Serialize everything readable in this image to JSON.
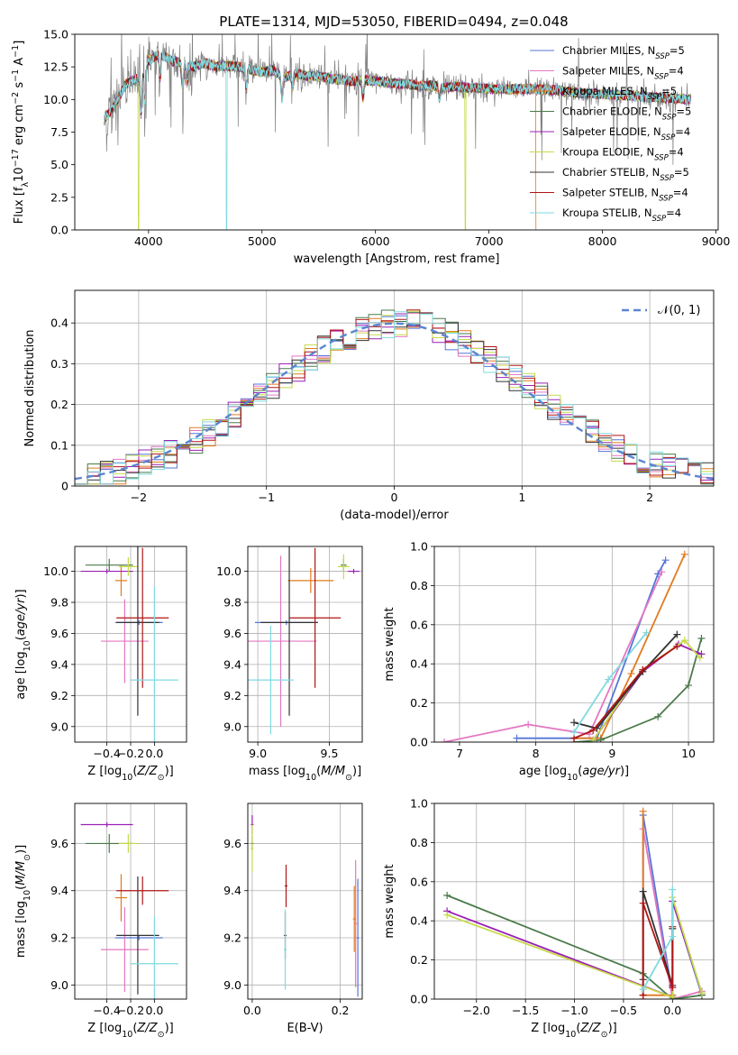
{
  "figure": {
    "title": "PLATE=1314, MJD=53050, FIBERID=0494, z=0.048"
  },
  "models": [
    {
      "name": "Chabrier MILES, N$_{SSP}$=5",
      "label_main": "Chabrier MILES, N",
      "label_sub": "SSP",
      "label_tail": "=5",
      "color": "#5577d6"
    },
    {
      "name": "Salpeter MILES, N$_{SSP}$=4",
      "label_main": "Salpeter MILES, N",
      "label_sub": "SSP",
      "label_tail": "=4",
      "color": "#e377c2"
    },
    {
      "name": "Kroupa MILES, N$_{SSP}$=5",
      "label_main": "Kroupa MILES, N",
      "label_sub": "SSP",
      "label_tail": "=5",
      "color": "#e07b1f"
    },
    {
      "name": "Chabrier ELODIE, N$_{SSP}$=5",
      "label_main": "Chabrier ELODIE, N",
      "label_sub": "SSP",
      "label_tail": "=5",
      "color": "#4a7a4a"
    },
    {
      "name": "Salpeter ELODIE, N$_{SSP}$=4",
      "label_main": "Salpeter ELODIE, N",
      "label_sub": "SSP",
      "label_tail": "=4",
      "color": "#9b20b5"
    },
    {
      "name": "Kroupa ELODIE, N$_{SSP}$=4",
      "label_main": "Kroupa ELODIE, N",
      "label_sub": "SSP",
      "label_tail": "=4",
      "color": "#c7d94a"
    },
    {
      "name": "Chabrier STELIB, N$_{SSP}$=5",
      "label_main": "Chabrier STELIB, N",
      "label_sub": "SSP",
      "label_tail": "=5",
      "color": "#333333"
    },
    {
      "name": "Salpeter STELIB, N$_{SSP}$=4",
      "label_main": "Salpeter STELIB, N",
      "label_sub": "SSP",
      "label_tail": "=4",
      "color": "#b01515"
    },
    {
      "name": "Kroupa STELIB, N$_{SSP}$=4",
      "label_main": "Kroupa STELIB, N",
      "label_sub": "SSP",
      "label_tail": "=4",
      "color": "#7fdadf"
    }
  ],
  "chart_data": [
    {
      "id": "spectrum",
      "type": "line",
      "title": "PLATE=1314, MJD=53050, FIBERID=0494, z=0.048",
      "xlabel": "wavelength [Angstrom, rest frame]",
      "ylabel": "Flux [f$_\\lambda$10$^{-17}$ erg cm$^{-2}$ s$^{-1}$ A$^{-1}$]",
      "xlim": [
        3350,
        9020
      ],
      "ylim": [
        0,
        15
      ],
      "xticks": [
        4000,
        5000,
        6000,
        7000,
        8000,
        9000
      ],
      "yticks": [
        0.0,
        2.5,
        5.0,
        7.5,
        10.0,
        12.5,
        15.0
      ],
      "grid": false,
      "legend_position": "top-right",
      "data_range": [
        3610,
        8780
      ],
      "continuum": {
        "x": [
          3610,
          3700,
          3800,
          3900,
          4000,
          4100,
          4200,
          4300,
          4400,
          4500,
          4600,
          4700,
          4800,
          4900,
          5000,
          5100,
          5200,
          5300,
          5400,
          5500,
          5600,
          5700,
          5800,
          5900,
          6000,
          6100,
          6200,
          6300,
          6400,
          6500,
          6600,
          6700,
          6800,
          6900,
          7000,
          7200,
          7400,
          7600,
          7800,
          8000,
          8200,
          8400,
          8600,
          8780
        ],
        "y": [
          8.5,
          9.5,
          11.2,
          11.6,
          13.0,
          13.5,
          13.0,
          12.8,
          12.5,
          12.8,
          12.5,
          12.6,
          12.5,
          12.3,
          12.1,
          12.2,
          11.7,
          12.0,
          11.8,
          11.8,
          11.6,
          11.5,
          11.4,
          11.5,
          11.4,
          11.3,
          11.2,
          11.2,
          11.0,
          11.1,
          10.9,
          11.0,
          10.9,
          10.9,
          10.8,
          10.8,
          10.8,
          10.7,
          10.5,
          10.4,
          10.3,
          10.2,
          10.1,
          10.0
        ]
      },
      "absorption_lines": [
        {
          "x": 3934,
          "depth": 3.5
        },
        {
          "x": 3968,
          "depth": 3.0
        },
        {
          "x": 4102,
          "depth": 2.0
        },
        {
          "x": 4300,
          "depth": 2.0
        },
        {
          "x": 4340,
          "depth": 1.5
        },
        {
          "x": 4861,
          "depth": 1.5
        },
        {
          "x": 5175,
          "depth": 2.0
        },
        {
          "x": 5270,
          "depth": 1.0
        },
        {
          "x": 5890,
          "depth": 1.5
        },
        {
          "x": 6563,
          "depth": 1.0
        }
      ],
      "dropouts": [
        {
          "x": 3911,
          "series": "Kroupa ELODIE, N$_{SSP}$=4"
        },
        {
          "x": 4688,
          "series": "Kroupa STELIB, N$_{SSP}$=4"
        },
        {
          "x": 6792,
          "series": "Kroupa ELODIE, N$_{SSP}$=4"
        },
        {
          "x": 7415,
          "series": "Kroupa MILES, N$_{SSP}$=5"
        }
      ]
    },
    {
      "id": "residuals",
      "type": "histogram",
      "xlabel": "(data-model)/error",
      "ylabel": "Normed distribution",
      "xlim": [
        -2.5,
        2.5
      ],
      "ylim": [
        0,
        0.48
      ],
      "xticks": [
        -2,
        -1,
        0,
        1,
        2
      ],
      "yticks": [
        0.0,
        0.1,
        0.2,
        0.3,
        0.4
      ],
      "grid": true,
      "legend_position": "top-right",
      "bin_width": 0.1,
      "reference_curve": {
        "label": "$\\mathcal{N}(0,1)$",
        "label_main": "𝒩(0, 1)",
        "style": "dashed",
        "color": "#5b85d0"
      }
    },
    {
      "id": "age_vs_Z",
      "type": "errorbar",
      "xlabel": "Z [log$_{10}$(Z/Z$_\\odot$)]",
      "ylabel": "age  [log$_{10}$(age/yr)]",
      "xlim": [
        -0.67,
        0.27
      ],
      "ylim": [
        8.9,
        10.16
      ],
      "xticks": [
        -0.4,
        -0.2,
        0.0
      ],
      "yticks": [
        9.0,
        9.2,
        9.4,
        9.6,
        9.8,
        10.0
      ],
      "grid": true,
      "points": [
        {
          "series": 0,
          "x": -0.13,
          "xerr": 0.2,
          "y": 9.67,
          "yerr": 0.0
        },
        {
          "series": 1,
          "x": -0.25,
          "xerr": 0.2,
          "y": 9.55,
          "yerr": 0.27
        },
        {
          "series": 2,
          "x": -0.28,
          "xerr": 0.05,
          "y": 9.94,
          "yerr": 0.1
        },
        {
          "series": 3,
          "x": -0.38,
          "xerr": 0.2,
          "y": 10.04,
          "yerr": 0.04
        },
        {
          "series": 4,
          "x": -0.4,
          "xerr": 0.22,
          "y": 10.0,
          "yerr": 0.0
        },
        {
          "series": 5,
          "x": -0.22,
          "xerr": 0.08,
          "y": 10.03,
          "yerr": 0.06
        },
        {
          "series": 6,
          "x": -0.14,
          "xerr": 0.18,
          "y": 9.67,
          "yerr": 0.6
        },
        {
          "series": 7,
          "x": -0.1,
          "xerr": 0.22,
          "y": 9.7,
          "yerr": 0.45
        },
        {
          "series": 8,
          "x": 0.0,
          "xerr": 0.2,
          "y": 9.3,
          "yerr": 0.6
        }
      ]
    },
    {
      "id": "age_vs_mass",
      "type": "errorbar",
      "xlabel": "mass [log$_{10}$(M/M$_\\odot$)]",
      "ylabel": "",
      "xlim": [
        8.93,
        9.73
      ],
      "ylim": [
        8.9,
        10.16
      ],
      "xticks": [
        9.0,
        9.5
      ],
      "yticks": [
        9.0,
        9.2,
        9.4,
        9.6,
        9.8,
        10.0
      ],
      "grid": true,
      "points": [
        {
          "series": 0,
          "x": 9.2,
          "xerr": 0.22,
          "y": 9.67,
          "yerr": 0.0
        },
        {
          "series": 1,
          "x": 9.16,
          "xerr": 0.25,
          "y": 9.55,
          "yerr": 0.55
        },
        {
          "series": 2,
          "x": 9.37,
          "xerr": 0.16,
          "y": 9.94,
          "yerr": 0.08
        },
        {
          "series": 3,
          "x": 9.6,
          "xerr": 0.02,
          "y": 10.04,
          "yerr": 0.04
        },
        {
          "series": 4,
          "x": 9.67,
          "xerr": 0.04,
          "y": 10.0,
          "yerr": 0.0
        },
        {
          "series": 5,
          "x": 9.6,
          "xerr": 0.04,
          "y": 10.03,
          "yerr": 0.08
        },
        {
          "series": 6,
          "x": 9.22,
          "xerr": 0.2,
          "y": 9.67,
          "yerr": 0.6
        },
        {
          "series": 7,
          "x": 9.4,
          "xerr": 0.18,
          "y": 9.7,
          "yerr": 0.45
        },
        {
          "series": 8,
          "x": 9.09,
          "xerr": 0.16,
          "y": 9.3,
          "yerr": 0.35
        }
      ]
    },
    {
      "id": "massweight_vs_age",
      "type": "line",
      "xlabel": "age  [log$_{10}$(age/yr)]",
      "ylabel": "mass weight",
      "xlim": [
        6.67,
        10.33
      ],
      "ylim": [
        0,
        1
      ],
      "xticks": [
        7,
        8,
        9,
        10
      ],
      "yticks": [
        0.0,
        0.2,
        0.4,
        0.6,
        0.8,
        1.0
      ],
      "grid": true,
      "series": [
        {
          "series": 0,
          "x": [
            7.75,
            8.5,
            8.8,
            9.6,
            9.7
          ],
          "y": [
            0.02,
            0.02,
            0.02,
            0.86,
            0.93
          ]
        },
        {
          "series": 1,
          "x": [
            6.8,
            7.9,
            8.7,
            9.65
          ],
          "y": [
            0.0,
            0.09,
            0.04,
            0.87
          ]
        },
        {
          "series": 2,
          "x": [
            8.5,
            8.85,
            9.25,
            9.95
          ],
          "y": [
            0.02,
            0.02,
            0.35,
            0.96
          ]
        },
        {
          "series": 3,
          "x": [
            8.5,
            8.85,
            9.6,
            10.0,
            10.17
          ],
          "y": [
            0.0,
            0.01,
            0.13,
            0.29,
            0.53
          ]
        },
        {
          "series": 4,
          "x": [
            8.75,
            9.4,
            9.87,
            10.17
          ],
          "y": [
            0.01,
            0.36,
            0.5,
            0.45
          ]
        },
        {
          "series": 5,
          "x": [
            8.75,
            9.4,
            9.95,
            10.15
          ],
          "y": [
            0.01,
            0.37,
            0.52,
            0.43
          ]
        },
        {
          "series": 6,
          "x": [
            8.5,
            8.8,
            9.4,
            9.85
          ],
          "y": [
            0.1,
            0.07,
            0.36,
            0.55
          ]
        },
        {
          "series": 7,
          "x": [
            8.5,
            8.75,
            9.4,
            9.85
          ],
          "y": [
            0.02,
            0.06,
            0.37,
            0.49
          ]
        },
        {
          "series": 8,
          "x": [
            8.5,
            8.95,
            9.45
          ],
          "y": [
            0.05,
            0.32,
            0.56
          ]
        }
      ]
    },
    {
      "id": "mass_vs_Z",
      "type": "errorbar",
      "xlabel": "Z [log$_{10}$(Z/Z$_\\odot$)]",
      "ylabel": "mass [log$_{10}$(M/M$_\\odot$)]",
      "xlim": [
        -0.67,
        0.27
      ],
      "ylim": [
        8.94,
        9.77
      ],
      "xticks": [
        -0.4,
        -0.2,
        0.0
      ],
      "yticks": [
        9.0,
        9.2,
        9.4,
        9.6
      ],
      "grid": true,
      "points": [
        {
          "series": 0,
          "x": -0.13,
          "xerr": 0.2,
          "y": 9.2,
          "yerr": 0.0
        },
        {
          "series": 1,
          "x": -0.25,
          "xerr": 0.2,
          "y": 9.15,
          "yerr": 0.18
        },
        {
          "series": 2,
          "x": -0.28,
          "xerr": 0.05,
          "y": 9.37,
          "yerr": 0.1
        },
        {
          "series": 3,
          "x": -0.38,
          "xerr": 0.2,
          "y": 9.6,
          "yerr": 0.04
        },
        {
          "series": 4,
          "x": -0.4,
          "xerr": 0.22,
          "y": 9.68,
          "yerr": 0.0
        },
        {
          "series": 5,
          "x": -0.22,
          "xerr": 0.08,
          "y": 9.6,
          "yerr": 0.04
        },
        {
          "series": 6,
          "x": -0.14,
          "xerr": 0.18,
          "y": 9.21,
          "yerr": 0.25
        },
        {
          "series": 7,
          "x": -0.1,
          "xerr": 0.22,
          "y": 9.4,
          "yerr": 0.06
        },
        {
          "series": 8,
          "x": 0.0,
          "xerr": 0.2,
          "y": 9.09,
          "yerr": 0.2
        }
      ]
    },
    {
      "id": "mass_vs_ebv",
      "type": "errorbar",
      "xlabel": "E(B-V)",
      "ylabel": "",
      "xlim": [
        -0.01,
        0.25
      ],
      "ylim": [
        8.94,
        9.77
      ],
      "xticks": [
        0.0,
        0.2
      ],
      "yticks": [
        9.0,
        9.2,
        9.4,
        9.6
      ],
      "grid": true,
      "points": [
        {
          "series": 0,
          "x": 0.24,
          "xerr": 0.0,
          "y": 9.2,
          "yerr": 0.25
        },
        {
          "series": 1,
          "x": 0.235,
          "xerr": 0.0,
          "y": 9.26,
          "yerr": 0.27
        },
        {
          "series": 2,
          "x": 0.232,
          "xerr": 0.0,
          "y": 9.28,
          "yerr": 0.14
        },
        {
          "series": 3,
          "x": 0.0,
          "xerr": 0.0,
          "y": 9.6,
          "yerr": 0.03
        },
        {
          "series": 4,
          "x": 0.0,
          "xerr": 0.0,
          "y": 9.68,
          "yerr": 0.04
        },
        {
          "series": 5,
          "x": 0.0,
          "xerr": 0.0,
          "y": 9.58,
          "yerr": 0.1
        },
        {
          "series": 6,
          "x": 0.075,
          "xerr": 0.0,
          "y": 9.21,
          "yerr": 0.1
        },
        {
          "series": 7,
          "x": 0.077,
          "xerr": 0.0,
          "y": 9.42,
          "yerr": 0.09
        },
        {
          "series": 8,
          "x": 0.075,
          "xerr": 0.0,
          "y": 9.15,
          "yerr": 0.17
        }
      ]
    },
    {
      "id": "massweight_vs_Z",
      "type": "line",
      "xlabel": "Z [log$_{10}$(Z/Z$_\\odot$)]",
      "ylabel": "mass weight",
      "xlim": [
        -2.43,
        0.42
      ],
      "ylim": [
        0,
        1
      ],
      "xticks": [
        -2.0,
        -1.5,
        -1.0,
        -0.5,
        0.0
      ],
      "yticks": [
        0.0,
        0.2,
        0.4,
        0.6,
        0.8,
        1.0
      ],
      "grid": true,
      "series": [
        {
          "series": 0,
          "x": [
            -0.3,
            -0.3,
            0.0,
            0.0,
            0.3
          ],
          "y": [
            0.02,
            0.94,
            0.02,
            0.5,
            0.02
          ]
        },
        {
          "series": 1,
          "x": [
            -0.3,
            -0.3,
            0.0,
            0.3
          ],
          "y": [
            0.0,
            0.87,
            0.0,
            0.04
          ]
        },
        {
          "series": 2,
          "x": [
            -0.3,
            -0.3,
            -0.3,
            0.0
          ],
          "y": [
            0.02,
            0.96,
            0.02,
            0.02
          ]
        },
        {
          "series": 3,
          "x": [
            -2.3,
            -0.3,
            0.0,
            0.3
          ],
          "y": [
            0.53,
            0.13,
            0.0,
            0.02
          ]
        },
        {
          "series": 4,
          "x": [
            -2.3,
            0.0,
            0.0,
            0.3
          ],
          "y": [
            0.45,
            0.01,
            0.5,
            0.03
          ]
        },
        {
          "series": 5,
          "x": [
            -2.3,
            0.0,
            0.0,
            0.3
          ],
          "y": [
            0.43,
            0.01,
            0.52,
            0.03
          ]
        },
        {
          "series": 6,
          "x": [
            -0.3,
            -0.3,
            0.0,
            0.0
          ],
          "y": [
            0.1,
            0.55,
            0.07,
            0.36
          ]
        },
        {
          "series": 7,
          "x": [
            -0.3,
            -0.3,
            0.0,
            0.0
          ],
          "y": [
            0.02,
            0.49,
            0.06,
            0.37
          ]
        },
        {
          "series": 8,
          "x": [
            -0.3,
            0.0,
            0.0
          ],
          "y": [
            0.05,
            0.32,
            0.56
          ]
        }
      ]
    }
  ]
}
